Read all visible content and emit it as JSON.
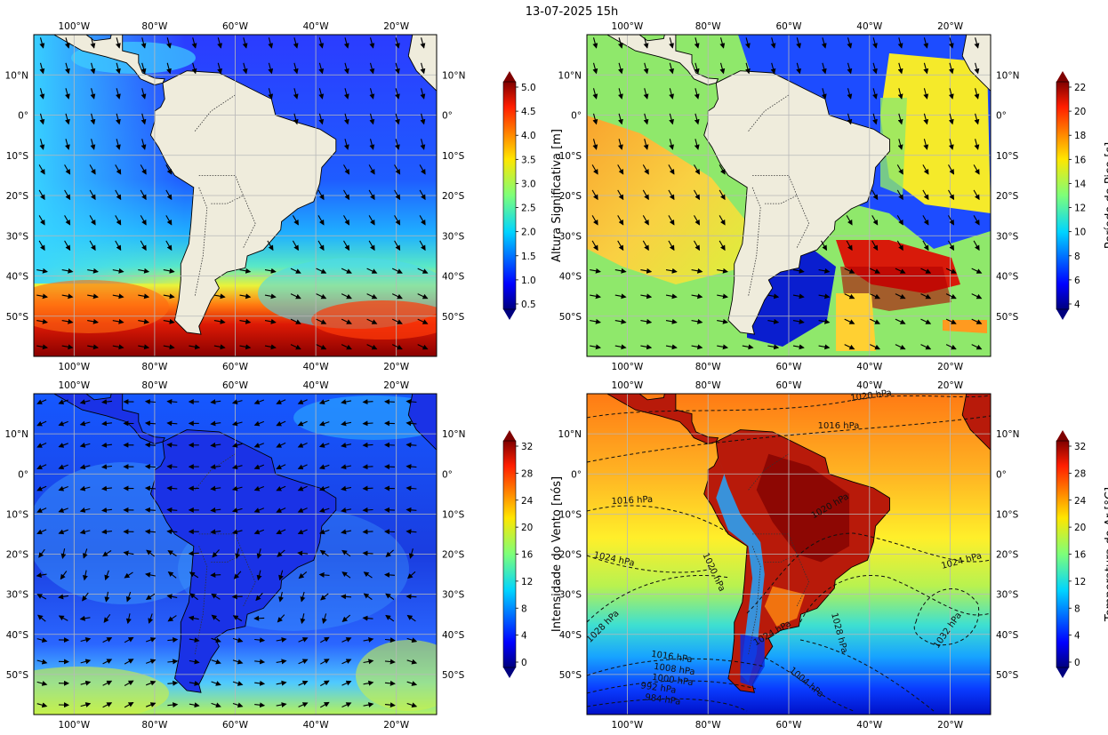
{
  "figure": {
    "title": "13-07-2025 15h"
  },
  "axes": {
    "lon_top": [
      "100°W",
      "80°W",
      "60°W",
      "40°W",
      "20°W"
    ],
    "lon_bottom": [
      "100°W",
      "80°W",
      "60°W",
      "40°W",
      "20°W"
    ],
    "lat_left": [
      "10°N",
      "0°",
      "10°S",
      "20°S",
      "30°S",
      "40°S",
      "50°S"
    ],
    "lat_right": [
      "10°N",
      "0°",
      "10°S",
      "20°S",
      "30°S",
      "40°S",
      "50°S"
    ]
  },
  "panels": [
    {
      "id": "wave-height",
      "colorbar_label": "Altura Significativa [m]",
      "colorbar_ticks": [
        "5.0",
        "4.5",
        "4.0",
        "3.5",
        "3.0",
        "2.5",
        "2.0",
        "1.5",
        "1.0",
        "0.5"
      ],
      "colormap": "jet"
    },
    {
      "id": "peak-period",
      "colorbar_label": "Período de Pico [s]",
      "colorbar_ticks": [
        "22",
        "20",
        "18",
        "16",
        "14",
        "12",
        "10",
        "8",
        "6",
        "4"
      ],
      "colormap": "jet"
    },
    {
      "id": "wind-speed",
      "colorbar_label": "Intensidade do Vento [nós]",
      "colorbar_ticks": [
        "32",
        "28",
        "24",
        "20",
        "16",
        "12",
        "8",
        "4",
        "0"
      ],
      "colormap": "jet"
    },
    {
      "id": "air-temperature",
      "colorbar_label": "Temperatura do Ar [°C]",
      "colorbar_ticks": [
        "32",
        "28",
        "24",
        "20",
        "16",
        "12",
        "8",
        "4",
        "0"
      ],
      "colormap": "jet"
    }
  ],
  "pressure_labels": [
    {
      "text": "1020 hPa"
    },
    {
      "text": "1016 hPa"
    },
    {
      "text": "1016 hPa"
    },
    {
      "text": "1024 hPa"
    },
    {
      "text": "1020 hPa"
    },
    {
      "text": "1020 hPa"
    },
    {
      "text": "1024 hPa"
    },
    {
      "text": "1028 hPa"
    },
    {
      "text": "1028 hPa"
    },
    {
      "text": "1032 hPa"
    },
    {
      "text": "1016 hPa"
    },
    {
      "text": "1008 hPa"
    },
    {
      "text": "1000 hPa"
    },
    {
      "text": "992 hPa"
    },
    {
      "text": "984 hPa"
    },
    {
      "text": "1004 hPa"
    },
    {
      "text": "1024 hPa"
    }
  ],
  "colors": {
    "land": "#efecdc",
    "grid": "#b8b8b8",
    "arrow": "#000000",
    "contour": "#111111"
  }
}
